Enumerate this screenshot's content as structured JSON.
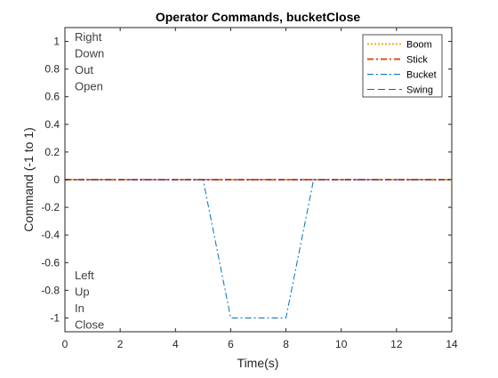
{
  "chart_data": {
    "type": "line",
    "title": "Operator Commands, bucketClose",
    "xlabel": "Time(s)",
    "ylabel": "Command (-1 to 1)",
    "xlim": [
      0,
      14
    ],
    "ylim": [
      -1.1,
      1.1
    ],
    "xticks": [
      0,
      2,
      4,
      6,
      8,
      10,
      12,
      14
    ],
    "yticks": [
      -1,
      -0.8,
      -0.6,
      -0.4,
      -0.2,
      0,
      0.2,
      0.4,
      0.6,
      0.8,
      1
    ],
    "ytick_labels": [
      "-1",
      "-0.8",
      "-0.6",
      "-0.4",
      "-0.2",
      "0",
      "0.2",
      "0.4",
      "0.6",
      "0.8",
      "1"
    ],
    "grid": false,
    "legend_location": "top-right",
    "series": [
      {
        "name": "Boom",
        "color": "#EDB120",
        "line_style": "dotted",
        "x": [
          0,
          14
        ],
        "y": [
          0,
          0
        ]
      },
      {
        "name": "Stick",
        "color": "#D95319",
        "line_style": "dash-dot",
        "x": [
          0,
          14
        ],
        "y": [
          0,
          0
        ]
      },
      {
        "name": "Bucket",
        "color": "#0072BD",
        "line_style": "dash-dot",
        "x": [
          0,
          5,
          6,
          8,
          9,
          14
        ],
        "y": [
          0,
          0,
          -1,
          -1,
          0,
          0
        ]
      },
      {
        "name": "Swing",
        "color": "#7E2F8E",
        "line_style": "dashed",
        "x": [
          0,
          14
        ],
        "y": [
          0,
          0
        ]
      }
    ],
    "annotations": {
      "positive_labels": [
        "Right",
        "Down",
        "Out",
        "Open"
      ],
      "negative_labels": [
        "Left",
        "Up",
        "In",
        "Close"
      ]
    }
  }
}
